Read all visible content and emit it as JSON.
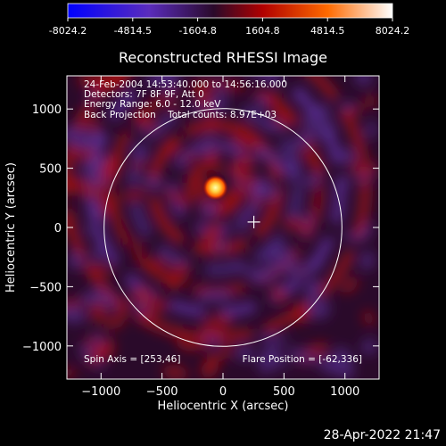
{
  "chart_data": {
    "type": "heatmap",
    "title": "Reconstructed RHESSI Image",
    "xlabel": "Heliocentric X (arcsec)",
    "ylabel": "Heliocentric Y (arcsec)",
    "xlim": [
      -1280,
      1280
    ],
    "ylim": [
      -1280,
      1280
    ],
    "xticks": [
      -1000,
      -500,
      0,
      500,
      1000
    ],
    "yticks": [
      -1000,
      -500,
      0,
      500,
      1000
    ],
    "colorbar": {
      "range": [
        -8024.2,
        8024.2
      ],
      "tick_labels": [
        "-8024.2",
        "-4814.5",
        "-1604.8",
        "1604.8",
        "4814.5",
        "8024.2"
      ],
      "colors": [
        "#0000ff",
        "#6a1a8c",
        "#3a0a3a",
        "#c00000",
        "#ff7000",
        "#ffffff"
      ]
    },
    "info_lines": [
      "24-Feb-2004 14:53:40.000 to 14:56:16.000",
      "Detectors: 7F 8F 9F, Att 0",
      "Energy Range: 6.0 - 12.0 keV",
      "Back Projection    Total counts: 8.97E+03"
    ],
    "spin_axis": "Spin Axis = [253,46]",
    "flare_position": "Flare Position = [-62,336]",
    "source": {
      "x": -62,
      "y": 336
    },
    "disk_center": {
      "x": 0,
      "y": 0
    },
    "disk_radius": 975,
    "crosshair": {
      "x": 253,
      "y": 46
    }
  },
  "footer": {
    "date": "28-Apr-2022 21:47"
  }
}
